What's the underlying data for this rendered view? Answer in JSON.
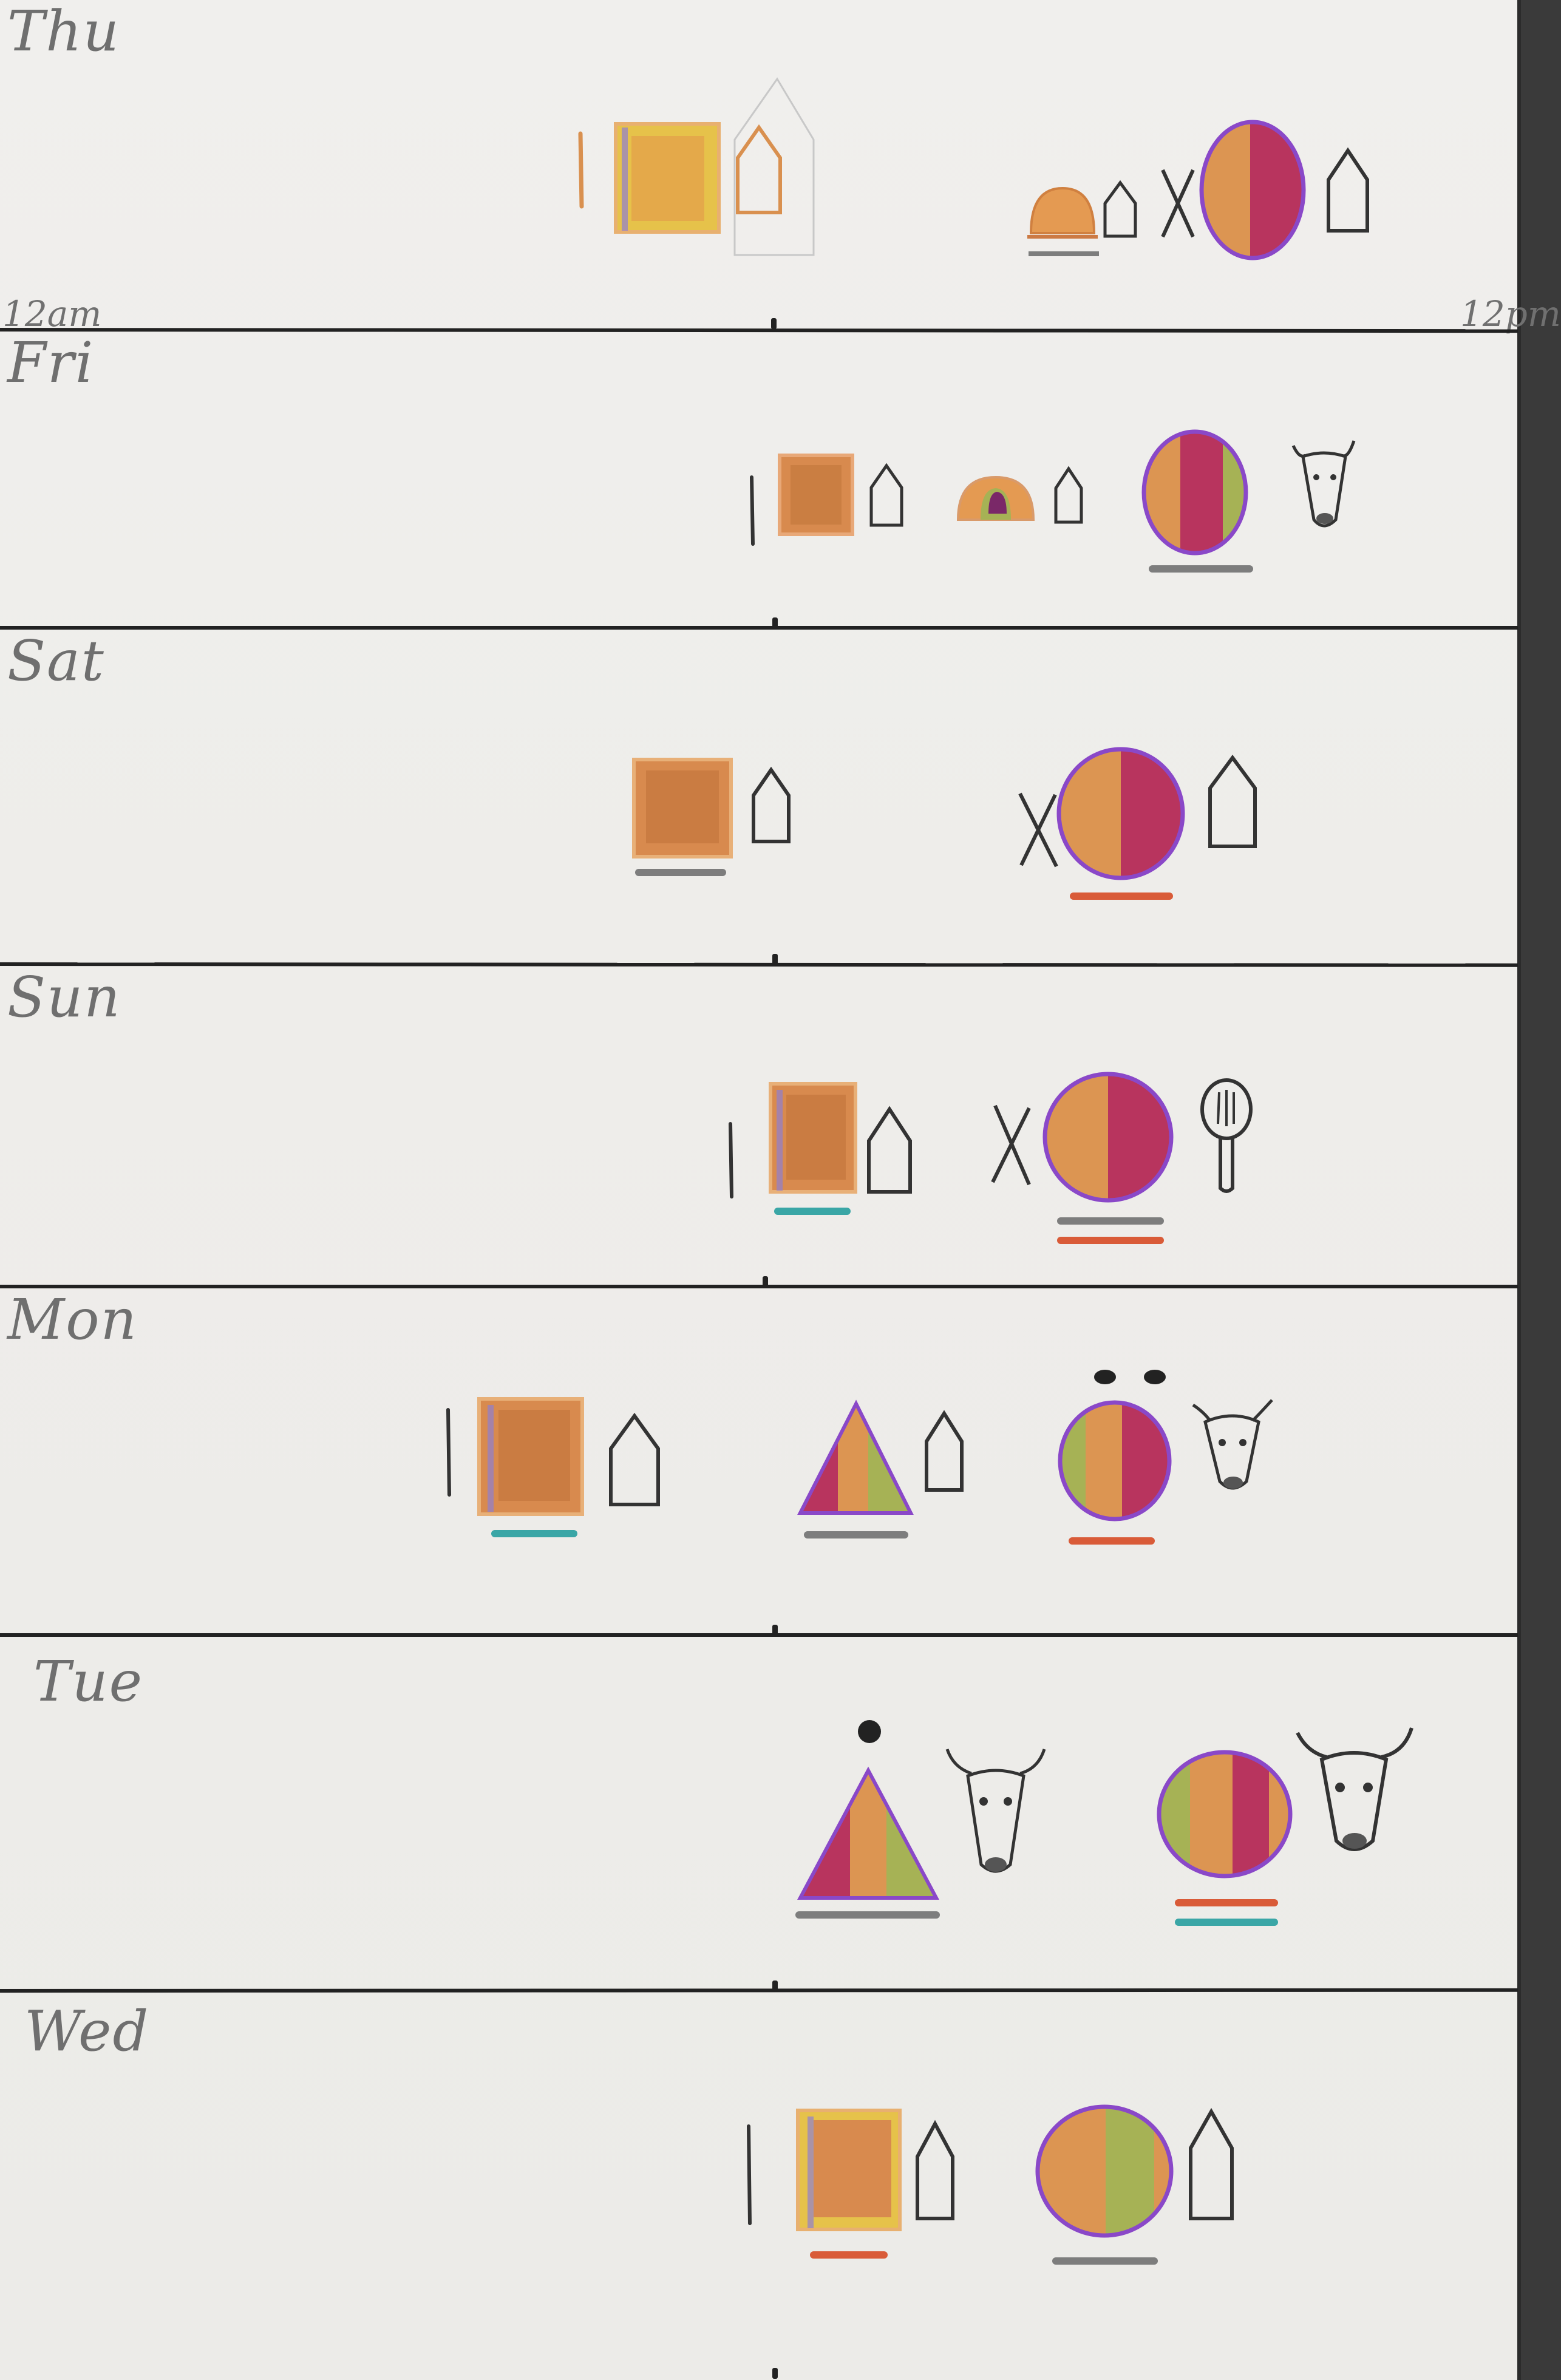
{
  "days": [
    {
      "key": "thu",
      "label": "Thu"
    },
    {
      "key": "fri",
      "label": "Fri"
    },
    {
      "key": "sat",
      "label": "Sat"
    },
    {
      "key": "sun",
      "label": "Sun"
    },
    {
      "key": "mon",
      "label": "Mon"
    },
    {
      "key": "tue",
      "label": "Tue"
    },
    {
      "key": "wed",
      "label": "Wed"
    }
  ],
  "time_labels": {
    "start": "12am",
    "end": "12pm"
  },
  "marks": {
    "x_mark": "X",
    "one_mark": "1"
  },
  "icons": [
    "toast-icon",
    "house-icon",
    "bowl-icon",
    "sun-icon",
    "cow-head-icon",
    "spatula-icon",
    "triangle-icon",
    "dot-icon"
  ],
  "colors": {
    "orange": "#d9904f",
    "magenta": "#b8345e",
    "green": "#a6b255",
    "purple": "#8a48c8",
    "yellow": "#e6c24a",
    "teal": "#3aa6a6",
    "red": "#d95b38",
    "gray": "#7d7d7d"
  }
}
